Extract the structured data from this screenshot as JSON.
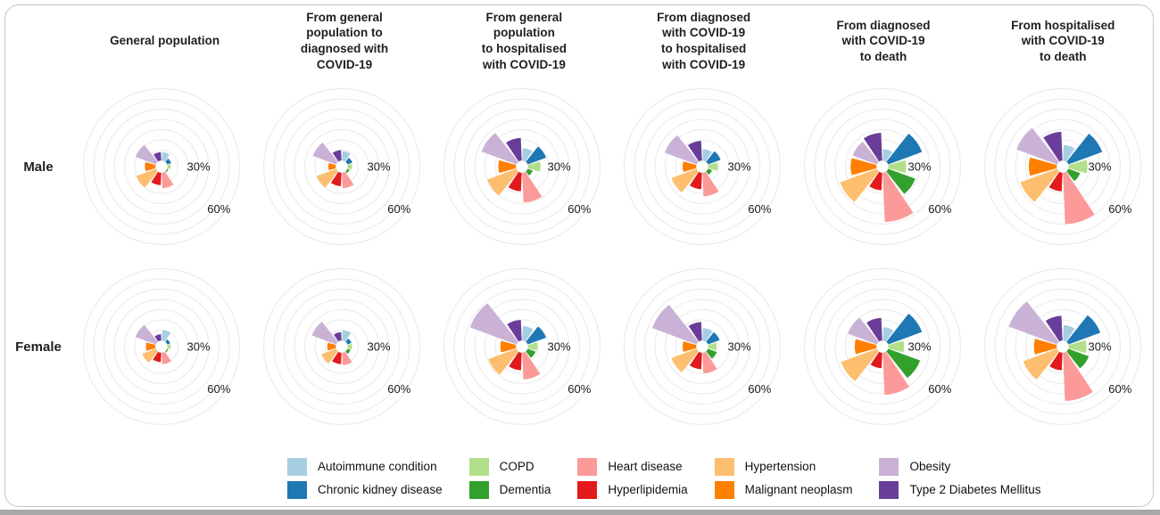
{
  "figure": {
    "row_labels": [
      "Male",
      "Female"
    ],
    "column_headers": [
      "General population",
      "From general\npopulation to\ndiagnosed with\nCOVID-19",
      "From general\npopulation\nto hospitalised\nwith COVID-19",
      "From diagnosed\nwith COVID-19\nto hospitalised\nwith COVID-19",
      "From diagnosed\nwith COVID-19\nto death",
      "From hospitalised\nwith COVID-19\nto death"
    ]
  },
  "legend": {
    "items": [
      {
        "label": "Autoimmune condition"
      },
      {
        "label": "Chronic kidney disease"
      },
      {
        "label": "COPD"
      },
      {
        "label": "Dementia"
      },
      {
        "label": "Heart disease"
      },
      {
        "label": "Hyperlipidemia"
      },
      {
        "label": "Hypertension"
      },
      {
        "label": "Malignant neoplasm"
      },
      {
        "label": "Obesity"
      },
      {
        "label": "Type 2 Diabetes Mellitus"
      }
    ]
  },
  "chart_data": {
    "type": "bar",
    "subtype": "polar-rose",
    "unit": "%",
    "categories": [
      "Autoimmune condition",
      "Chronic kidney disease",
      "COPD",
      "Dementia",
      "Heart disease",
      "Hyperlipidemia",
      "Hypertension",
      "Malignant neoplasm",
      "Obesity",
      "Type 2 Diabetes Mellitus"
    ],
    "colors": [
      "#a6cee3",
      "#1f78b4",
      "#b2df8a",
      "#33a02c",
      "#fb9a99",
      "#e31a1c",
      "#fdbf6f",
      "#ff7f00",
      "#cab2d6",
      "#6a3d9a"
    ],
    "rows": [
      "Male",
      "Female"
    ],
    "columns": [
      "General population",
      "From general population to diagnosed with COVID-19",
      "From general population to hospitalised with COVID-19",
      "From diagnosed with COVID-19 to hospitalised with COVID-19",
      "From diagnosed with COVID-19 to death",
      "From hospitalised with COVID-19 to death"
    ],
    "radial_ticks": [
      30,
      60
    ],
    "radial_tick_labels": [
      "30%",
      "60%"
    ],
    "radial_gridlines": [
      10,
      20,
      30,
      40,
      50,
      60,
      70
    ],
    "rlim": [
      0,
      70
    ],
    "grid": true,
    "values": {
      "Male": [
        [
          8,
          4,
          3,
          1,
          15,
          12,
          20,
          10,
          21,
          8
        ],
        [
          9,
          5,
          4,
          2,
          15,
          13,
          20,
          7,
          24,
          10
        ],
        [
          12,
          19,
          12,
          5,
          29,
          18,
          30,
          17,
          36,
          22
        ],
        [
          11,
          13,
          9,
          4,
          23,
          16,
          26,
          13,
          33,
          19
        ],
        [
          11,
          35,
          17,
          28,
          48,
          17,
          38,
          25,
          25,
          27
        ],
        [
          15,
          35,
          18,
          12,
          50,
          18,
          38,
          27,
          42,
          28
        ]
      ],
      "Female": [
        [
          10,
          3,
          3,
          1,
          11,
          9,
          14,
          9,
          21,
          6
        ],
        [
          10,
          4,
          4,
          3,
          12,
          11,
          15,
          8,
          25,
          8
        ],
        [
          14,
          19,
          9,
          8,
          26,
          17,
          29,
          15,
          48,
          20
        ],
        [
          12,
          12,
          8,
          9,
          20,
          16,
          26,
          13,
          46,
          18
        ],
        [
          13,
          35,
          15,
          33,
          41,
          15,
          37,
          21,
          30,
          22
        ],
        [
          15,
          33,
          17,
          21,
          47,
          17,
          35,
          22,
          50,
          24
        ]
      ]
    }
  }
}
